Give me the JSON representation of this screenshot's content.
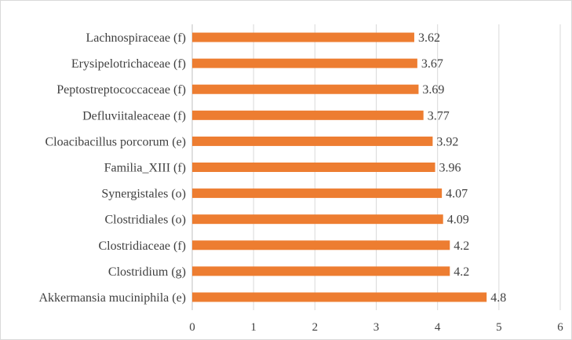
{
  "chart_data": {
    "type": "bar",
    "orientation": "horizontal",
    "categories": [
      "Akkermansia muciniphila (e)",
      "Clostridium (g)",
      "Clostridiaceae (f)",
      "Clostridiales (o)",
      "Synergistales (o)",
      "Familia_XIII (f)",
      "Cloacibacillus porcorum (e)",
      "Defluviitaleaceae (f)",
      "Peptostreptococcaceae (f)",
      "Erysipelotrichaceae (f)",
      "Lachnospiraceae (f)"
    ],
    "values": [
      4.8,
      4.2,
      4.2,
      4.09,
      4.07,
      3.96,
      3.92,
      3.77,
      3.69,
      3.67,
      3.62
    ],
    "value_labels": [
      "4.8",
      "4.2",
      "4.2",
      "4.09",
      "4.07",
      "3.96",
      "3.92",
      "3.77",
      "3.69",
      "3.67",
      "3.62"
    ],
    "xlim": [
      0,
      6
    ],
    "x_ticks": [
      0,
      1,
      2,
      3,
      4,
      5,
      6
    ],
    "grid": true,
    "legend": "none",
    "bar_color": "#ED7D31"
  }
}
